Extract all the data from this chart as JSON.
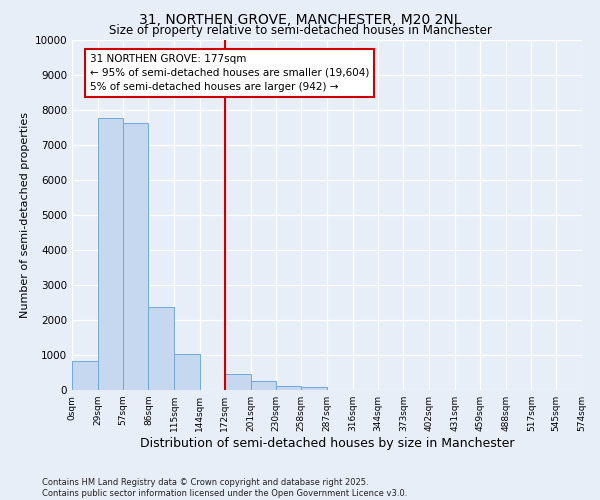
{
  "title": "31, NORTHEN GROVE, MANCHESTER, M20 2NL",
  "subtitle": "Size of property relative to semi-detached houses in Manchester",
  "xlabel": "Distribution of semi-detached houses by size in Manchester",
  "ylabel": "Number of semi-detached properties",
  "property_label": "31 NORTHEN GROVE: 177sqm",
  "annotation_line1": "← 95% of semi-detached houses are smaller (19,604)",
  "annotation_line2": "5% of semi-detached houses are larger (942) →",
  "footnote1": "Contains HM Land Registry data © Crown copyright and database right 2025.",
  "footnote2": "Contains public sector information licensed under the Open Government Licence v3.0.",
  "bin_edges": [
    0,
    29,
    57,
    86,
    115,
    144,
    172,
    201,
    230,
    258,
    287,
    316,
    344,
    373,
    402,
    431,
    459,
    488,
    517,
    545,
    574
  ],
  "bin_labels": [
    "0sqm",
    "29sqm",
    "57sqm",
    "86sqm",
    "115sqm",
    "144sqm",
    "172sqm",
    "201sqm",
    "230sqm",
    "258sqm",
    "287sqm",
    "316sqm",
    "344sqm",
    "373sqm",
    "402sqm",
    "431sqm",
    "459sqm",
    "488sqm",
    "517sqm",
    "545sqm",
    "574sqm"
  ],
  "bar_heights": [
    820,
    7780,
    7620,
    2380,
    1040,
    0,
    450,
    270,
    110,
    80,
    0,
    0,
    0,
    0,
    0,
    0,
    0,
    0,
    0,
    0
  ],
  "bar_color": "#c5d8f0",
  "bar_edge_color": "#6fa8d8",
  "vline_x": 172,
  "vline_color": "#cc0000",
  "box_edge_color": "#cc0000",
  "ylim": [
    0,
    10000
  ],
  "yticks": [
    0,
    1000,
    2000,
    3000,
    4000,
    5000,
    6000,
    7000,
    8000,
    9000,
    10000
  ],
  "bg_color": "#e8eef8",
  "plot_bg_color": "#e8eef8",
  "title_fontsize": 10,
  "subtitle_fontsize": 8.5,
  "xlabel_fontsize": 9,
  "ylabel_fontsize": 8,
  "annotation_fontsize": 7.5,
  "footnote_fontsize": 6
}
